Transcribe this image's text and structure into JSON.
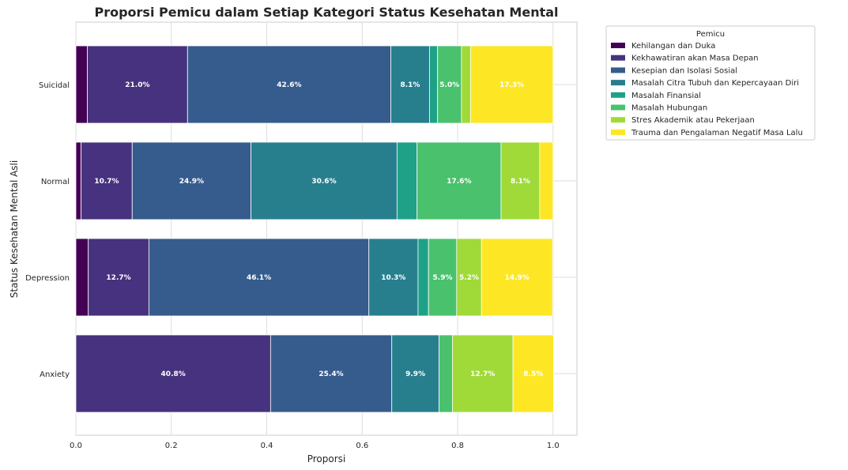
{
  "chart_data": {
    "type": "bar",
    "orientation": "horizontal",
    "stacked": true,
    "title": "Proporsi Pemicu dalam Setiap Kategori Status Kesehatan Mental",
    "xlabel": "Proporsi",
    "ylabel": "Status Kesehatan Mental Asli",
    "xlim": [
      0,
      1.05
    ],
    "xticks": [
      "0.0",
      "0.2",
      "0.4",
      "0.6",
      "0.8",
      "1.0"
    ],
    "grid": true,
    "legend_placement": "outside top-right",
    "legend_title": "Pemicu",
    "categories": [
      "Suicidal",
      "Normal",
      "Depression",
      "Anxiety"
    ],
    "series": [
      {
        "name": "Kehilangan dan Duka",
        "color": "#440154",
        "values": [
          0.024,
          0.011,
          0.026,
          0.0
        ]
      },
      {
        "name": "Kekhawatiran akan Masa Depan",
        "color": "#46327e",
        "values": [
          0.21,
          0.107,
          0.127,
          0.408
        ]
      },
      {
        "name": "Kesepian dan Isolasi Sosial",
        "color": "#365c8d",
        "values": [
          0.426,
          0.249,
          0.461,
          0.254
        ]
      },
      {
        "name": "Masalah Citra Tubuh dan Kepercayaan Diri",
        "color": "#277f8e",
        "values": [
          0.081,
          0.306,
          0.103,
          0.099
        ]
      },
      {
        "name": "Masalah Finansial",
        "color": "#1fa187",
        "values": [
          0.017,
          0.042,
          0.022,
          0.0
        ]
      },
      {
        "name": "Masalah Hubungan",
        "color": "#4ac16d",
        "values": [
          0.05,
          0.176,
          0.059,
          0.028
        ]
      },
      {
        "name": "Stres Akademik atau Pekerjaan",
        "color": "#a0da39",
        "values": [
          0.019,
          0.081,
          0.052,
          0.127
        ]
      },
      {
        "name": "Trauma dan Pengalaman Negatif Masa Lalu",
        "color": "#fde725",
        "values": [
          0.173,
          0.028,
          0.149,
          0.085
        ]
      }
    ],
    "label_threshold": 0.05
  }
}
